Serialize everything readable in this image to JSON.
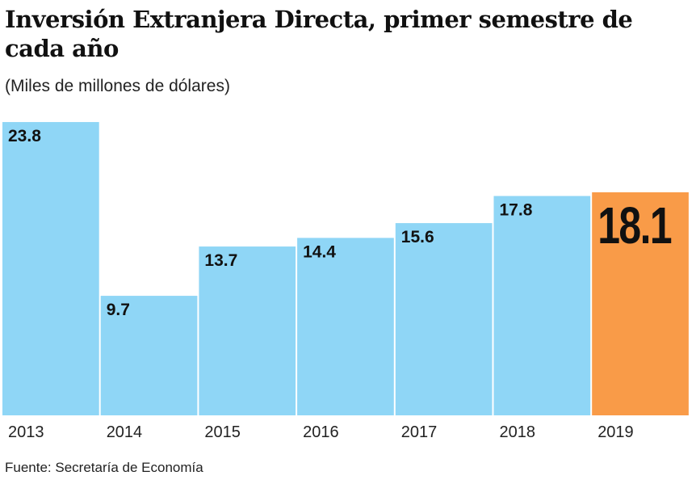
{
  "title": "Inversión Extranjera Directa, primer semestre de cada año",
  "subtitle": "(Miles de millones de dólares)",
  "source": "Fuente: Secretaría de Economía",
  "chart_data": {
    "type": "bar",
    "title": "Inversión Extranjera Directa, primer semestre de cada año",
    "ylabel": "(Miles de millones de dólares)",
    "categories": [
      "2013",
      "2014",
      "2015",
      "2016",
      "2017",
      "2018",
      "2019"
    ],
    "values": [
      23.8,
      9.7,
      13.7,
      14.4,
      15.6,
      17.8,
      18.1
    ],
    "labels": [
      "23.8",
      "9.7",
      "13.7",
      "14.4",
      "15.6",
      "17.8",
      "18.1"
    ],
    "highlight": "2019",
    "colors": {
      "default": "#8fd6f6",
      "highlight": "#f99b48"
    },
    "ylim": [
      0,
      24
    ],
    "grid": false,
    "legend": "none"
  }
}
